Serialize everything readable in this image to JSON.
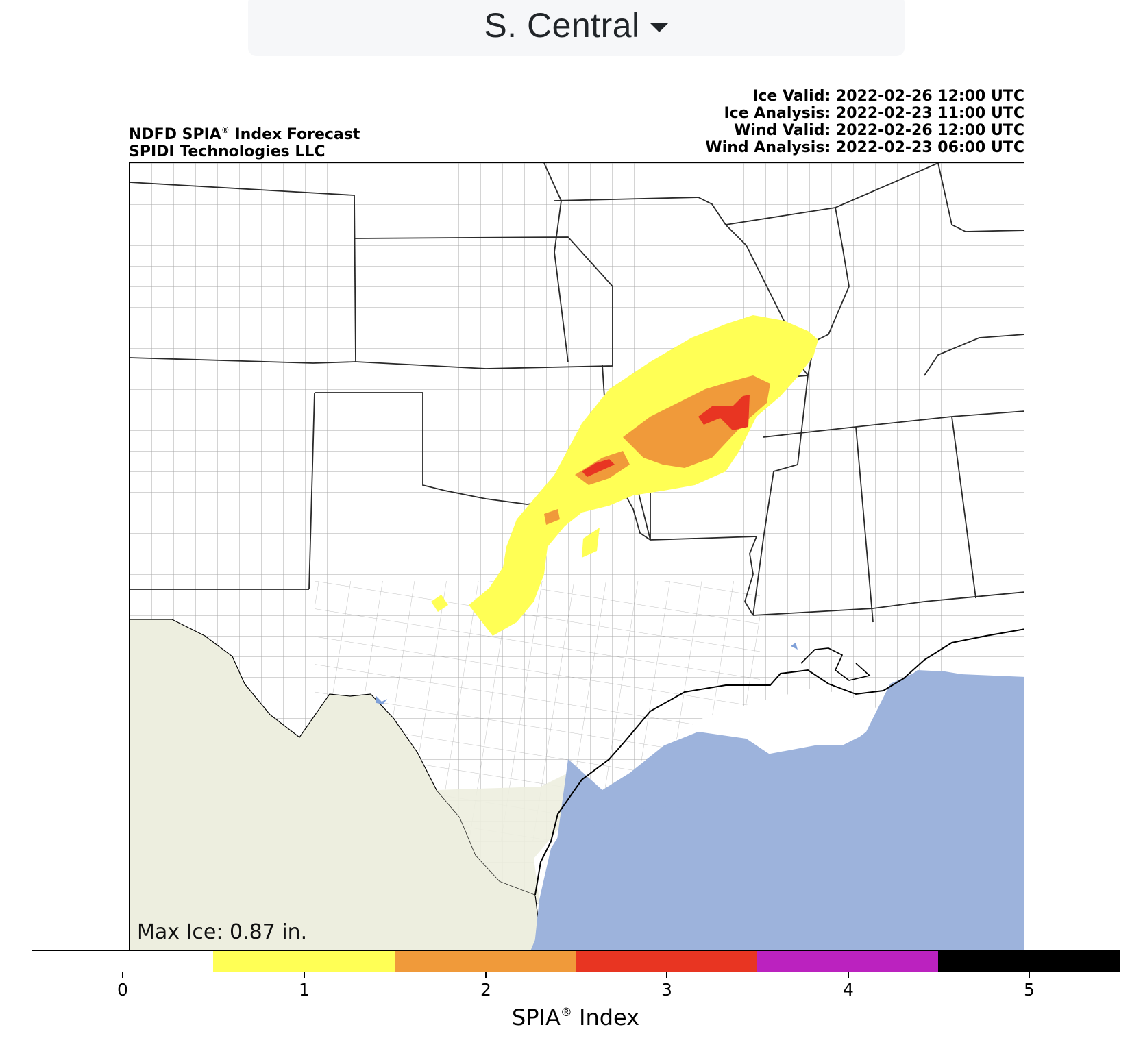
{
  "region_selector": {
    "label": "S. Central",
    "icon": "caret-down-icon"
  },
  "header": {
    "title_pre": "NDFD SPIA",
    "title_reg": "®",
    "title_post": " Index Forecast",
    "subtitle": "SPIDI Technologies LLC",
    "ice_valid": "Ice Valid: 2022-02-26 12:00 UTC",
    "ice_analysis": "Ice Analysis: 2022-02-23 11:00 UTC",
    "wind_valid": "Wind Valid: 2022-02-26 12:00 UTC",
    "wind_analysis": "Wind Analysis: 2022-02-23 06:00 UTC"
  },
  "map": {
    "max_ice": "Max Ice: 0.87 in.",
    "colors": {
      "land": "#ffffff",
      "water": "#9db3dc",
      "mexico": "#edeedf",
      "county_lines": "#8f8f8f",
      "state_lines": "#2a2a2a",
      "coast": "#000000"
    }
  },
  "colorbar": {
    "title_pre": "SPIA",
    "title_reg": "®",
    "title_post": " Index",
    "ticks": [
      "0",
      "1",
      "2",
      "3",
      "4",
      "5"
    ],
    "levels": [
      {
        "value": 0,
        "color": "#ffffff"
      },
      {
        "value": 1,
        "color": "#ffff55"
      },
      {
        "value": 2,
        "color": "#f09a3a"
      },
      {
        "value": 3,
        "color": "#e83522"
      },
      {
        "value": 4,
        "color": "#bb22bf"
      },
      {
        "value": 5,
        "color": "#000000"
      }
    ]
  }
}
